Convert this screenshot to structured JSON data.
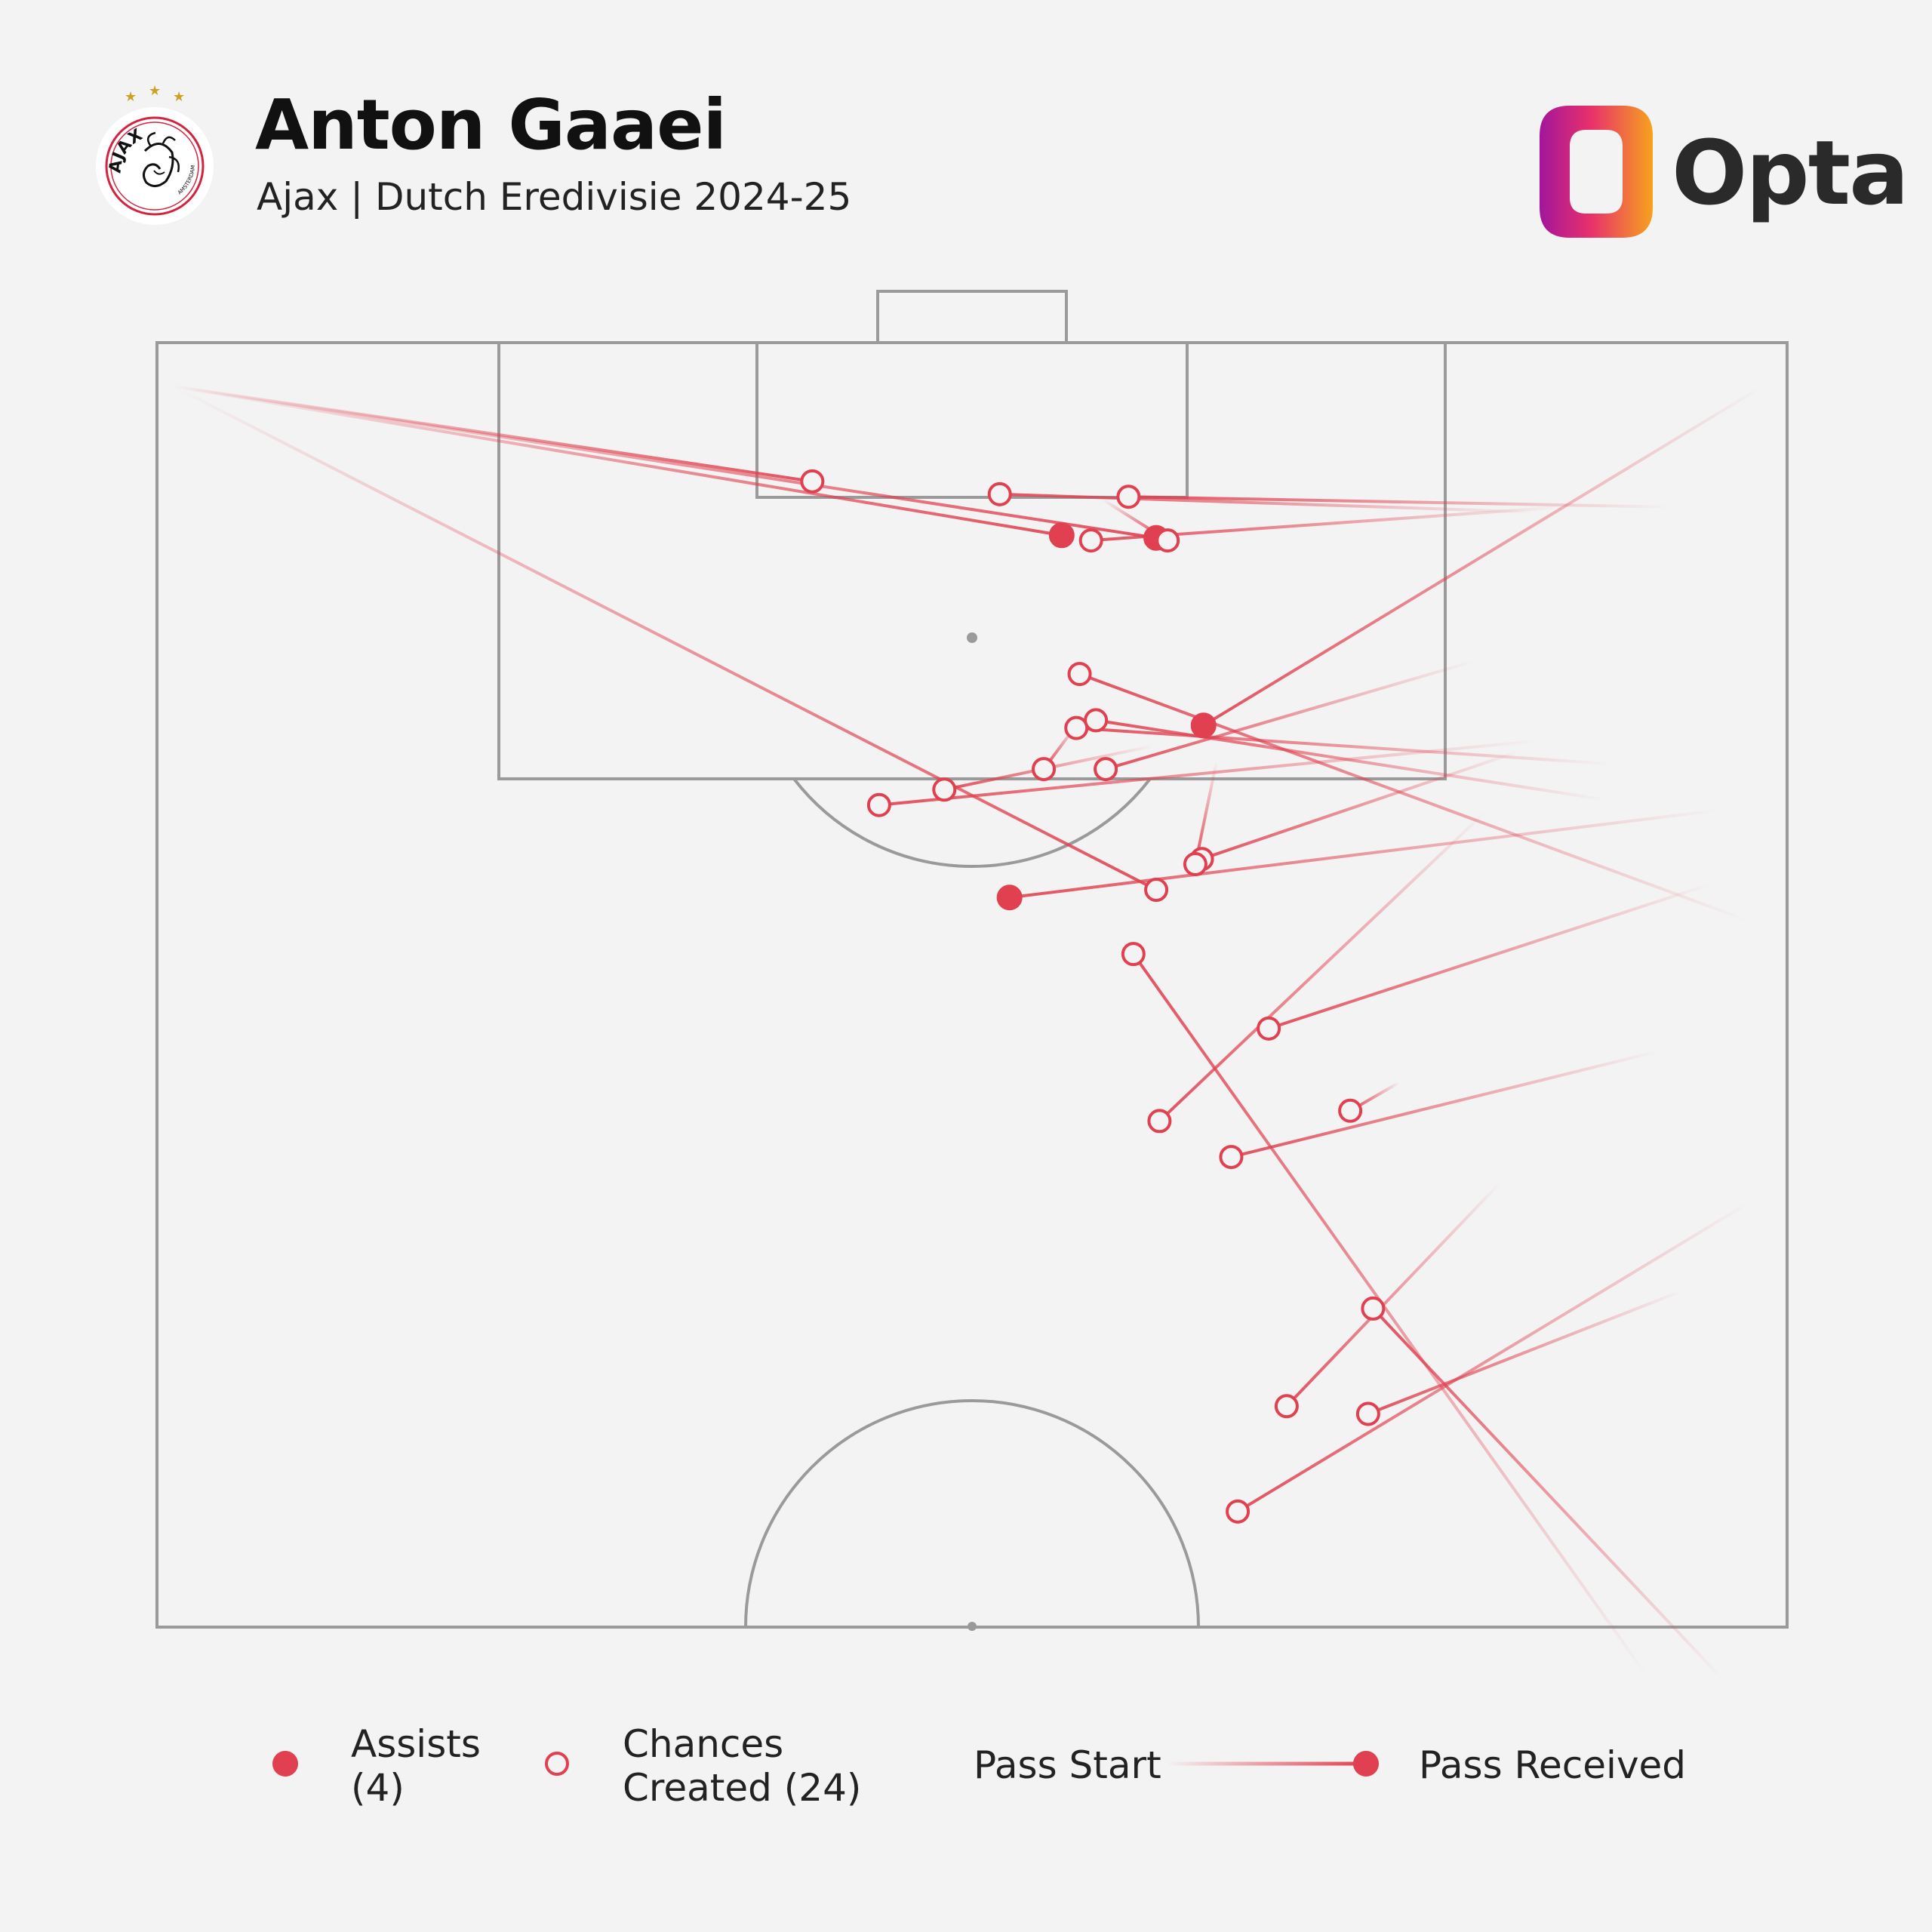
{
  "header": {
    "player_name": "Anton Gaaei",
    "subtitle": "Ajax | Dutch Eredivisie 2024-25",
    "brand": "Opta",
    "badge_text": "AJAX",
    "badge_subtext": "AMSTERDAM"
  },
  "legend": {
    "assists_line1": "Assists",
    "assists_line2": "(4)",
    "chances_line1": "Chances",
    "chances_line2": "Created (24)",
    "pass_start": "Pass Start",
    "pass_received": "Pass Received"
  },
  "colors": {
    "accent": "#e0404f",
    "pitch_lines": "#9a9a9a",
    "background": "#f3f3f3",
    "text": "#111111"
  },
  "chart_data": {
    "type": "scatter",
    "subtype": "pass-map",
    "pitch_view": "attacking half, vertical, goal at top",
    "x_range": [
      0,
      100
    ],
    "y_range": [
      50,
      100
    ],
    "passes": [
      {
        "kind": "assist",
        "start": [
          98.5,
          98.3
        ],
        "end": [
          64.2,
          85.1
        ]
      },
      {
        "kind": "assist",
        "start": [
          95.8,
          81.8
        ],
        "end": [
          52.3,
          78.4
        ]
      },
      {
        "kind": "assist",
        "start": [
          1.0,
          98.3
        ],
        "end": [
          55.5,
          92.5
        ]
      },
      {
        "kind": "assist",
        "start": [
          1.0,
          98.3
        ],
        "end": [
          61.3,
          92.4
        ]
      },
      {
        "kind": "chance",
        "start": [
          95.2,
          78.9
        ],
        "end": [
          68.2,
          73.3
        ]
      },
      {
        "kind": "chance",
        "start": [
          81.6,
          81.8
        ],
        "end": [
          61.5,
          69.7
        ]
      },
      {
        "kind": "chance",
        "start": [
          82.4,
          67.3
        ],
        "end": [
          69.3,
          58.6
        ]
      },
      {
        "kind": "chance",
        "start": [
          93.6,
          63.1
        ],
        "end": [
          74.3,
          58.3
        ]
      },
      {
        "kind": "chance",
        "start": [
          84.7,
          84.5
        ],
        "end": [
          44.3,
          82.0
        ]
      },
      {
        "kind": "chance",
        "start": [
          89.2,
          83.6
        ],
        "end": [
          56.4,
          85.0
        ]
      },
      {
        "kind": "chance",
        "start": [
          83.6,
          84.1
        ],
        "end": [
          64.1,
          79.9
        ]
      },
      {
        "kind": "chance",
        "start": [
          80.8,
          87.6
        ],
        "end": [
          58.2,
          83.4
        ]
      },
      {
        "kind": "chance",
        "start": [
          88.9,
          82.2
        ],
        "end": [
          57.6,
          85.3
        ]
      },
      {
        "kind": "chance",
        "start": [
          97.6,
          77.5
        ],
        "end": [
          56.6,
          87.1
        ]
      },
      {
        "kind": "chance",
        "start": [
          86.2,
          93.6
        ],
        "end": [
          57.3,
          92.3
        ]
      },
      {
        "kind": "chance",
        "start": [
          92.9,
          93.6
        ],
        "end": [
          59.6,
          94.0
        ]
      },
      {
        "kind": "chance",
        "start": [
          84.7,
          93.4
        ],
        "end": [
          51.7,
          94.1
        ]
      },
      {
        "kind": "chance",
        "start": [
          1.0,
          98.3
        ],
        "end": [
          40.2,
          94.6
        ]
      },
      {
        "kind": "chance",
        "start": [
          97.6,
          66.5
        ],
        "end": [
          66.3,
          54.5
        ]
      },
      {
        "kind": "chance",
        "start": [
          96.0,
          48.0
        ],
        "end": [
          74.6,
          62.4
        ]
      },
      {
        "kind": "chance",
        "start": [
          91.4,
          48.1
        ],
        "end": [
          59.9,
          76.2
        ]
      },
      {
        "kind": "chance",
        "start": [
          76.2,
          71.2
        ],
        "end": [
          73.2,
          70.1
        ]
      },
      {
        "kind": "chance",
        "start": [
          1.0,
          98.3
        ],
        "end": [
          61.3,
          78.7
        ]
      },
      {
        "kind": "chance",
        "start": [
          92.0,
          72.4
        ],
        "end": [
          65.9,
          68.3
        ]
      },
      {
        "kind": "chance",
        "start": [
          65.0,
          83.7
        ],
        "end": [
          63.7,
          79.7
        ]
      },
      {
        "kind": "chance",
        "start": [
          61.1,
          84.3
        ],
        "end": [
          48.3,
          82.6
        ]
      },
      {
        "kind": "chance",
        "start": [
          56.5,
          85.2
        ],
        "end": [
          54.4,
          83.4
        ]
      },
      {
        "kind": "chance",
        "start": [
          58.0,
          93.9
        ],
        "end": [
          62.0,
          92.3
        ]
      }
    ]
  }
}
